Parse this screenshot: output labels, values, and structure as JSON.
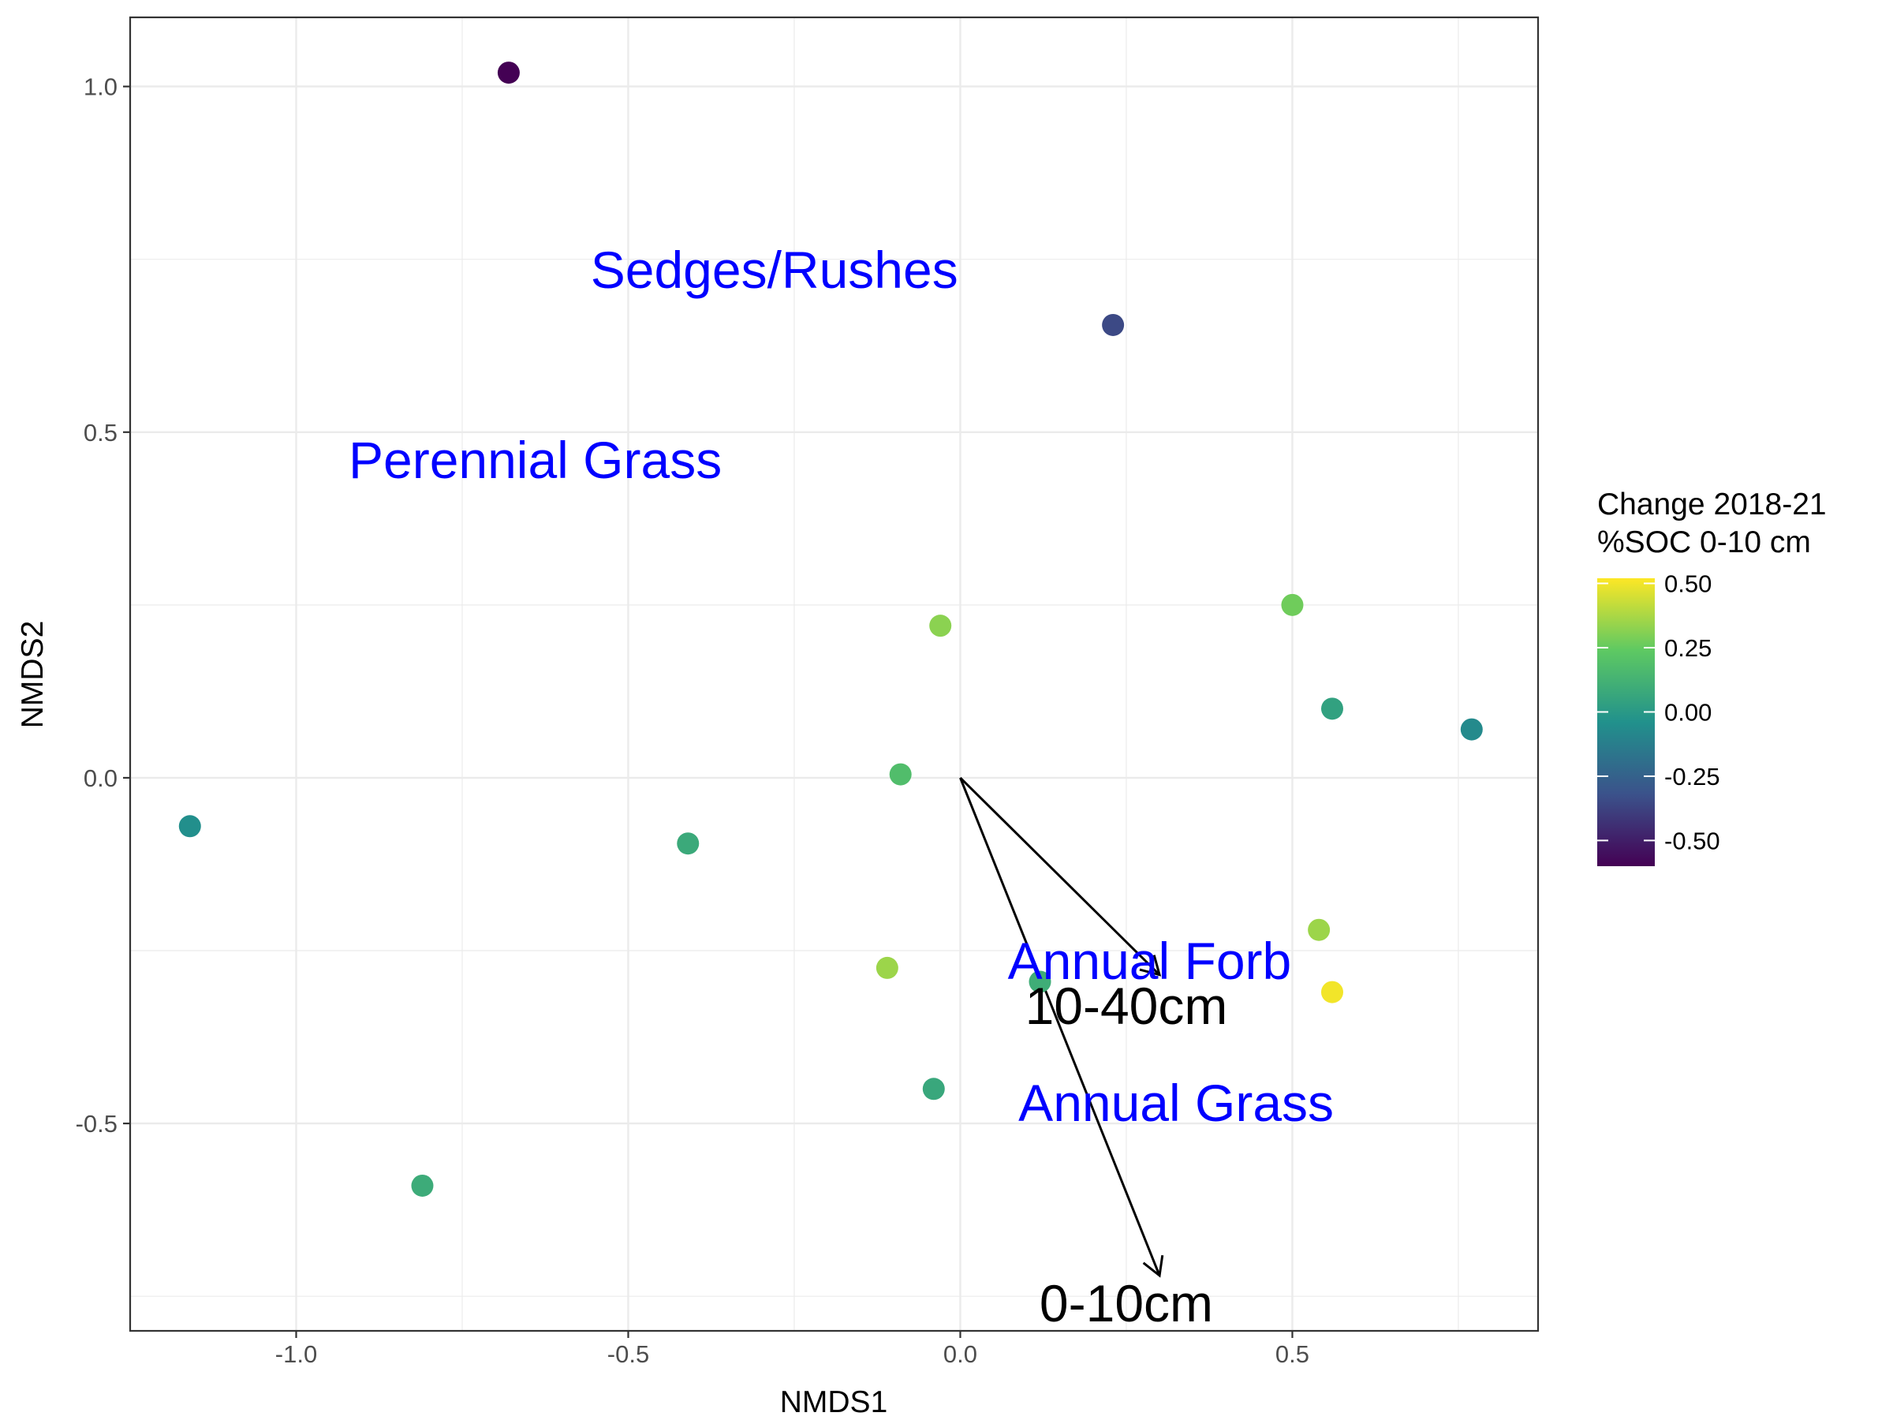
{
  "chart_data": {
    "type": "scatter",
    "xlabel": "NMDS1",
    "ylabel": "NMDS2",
    "xlim": [
      -1.25,
      0.87
    ],
    "ylim": [
      -0.8,
      1.1
    ],
    "x_ticks": [
      -1.0,
      -0.5,
      0.0,
      0.5
    ],
    "x_tick_labels": [
      "-1.0",
      "-0.5",
      "0.0",
      "0.5"
    ],
    "y_ticks": [
      -0.5,
      0.0,
      0.5,
      1.0
    ],
    "y_tick_labels": [
      "-0.5",
      "0.0",
      "0.5",
      "1.0"
    ],
    "grid": true,
    "points": [
      {
        "x": -0.68,
        "y": 1.02,
        "value": -0.6
      },
      {
        "x": 0.23,
        "y": 0.655,
        "value": -0.35
      },
      {
        "x": -0.03,
        "y": 0.22,
        "value": 0.32
      },
      {
        "x": 0.5,
        "y": 0.25,
        "value": 0.27
      },
      {
        "x": 0.56,
        "y": 0.1,
        "value": 0.04
      },
      {
        "x": 0.77,
        "y": 0.07,
        "value": -0.07
      },
      {
        "x": -0.09,
        "y": 0.005,
        "value": 0.18
      },
      {
        "x": -1.16,
        "y": -0.07,
        "value": -0.05
      },
      {
        "x": -0.41,
        "y": -0.095,
        "value": 0.08
      },
      {
        "x": 0.54,
        "y": -0.22,
        "value": 0.35
      },
      {
        "x": -0.11,
        "y": -0.275,
        "value": 0.35
      },
      {
        "x": 0.12,
        "y": -0.295,
        "value": 0.1
      },
      {
        "x": 0.56,
        "y": -0.31,
        "value": 0.5
      },
      {
        "x": -0.04,
        "y": -0.45,
        "value": 0.07
      },
      {
        "x": -0.81,
        "y": -0.59,
        "value": 0.09
      }
    ],
    "species_labels": [
      {
        "text": "Sedges/Rushes",
        "x": -0.28,
        "y": 0.735
      },
      {
        "text": "Perennial Grass",
        "x": -0.64,
        "y": 0.46
      },
      {
        "text": "Annual Forb",
        "x": 0.285,
        "y": -0.265
      },
      {
        "text": "Annual Grass",
        "x": 0.325,
        "y": -0.47
      }
    ],
    "vectors": [
      {
        "label": "10-40cm",
        "x": 0.3,
        "y": -0.285,
        "label_x": 0.25,
        "label_y": -0.33
      },
      {
        "label": "0-10cm",
        "x": 0.3,
        "y": -0.72,
        "label_x": 0.25,
        "label_y": -0.76
      }
    ],
    "legend": {
      "title_lines": [
        "Change 2018-21",
        "%SOC 0-10 cm"
      ],
      "placement": "right",
      "range": [
        -0.6,
        0.52
      ],
      "ticks": [
        0.5,
        0.25,
        0.0,
        -0.25,
        -0.5
      ],
      "tick_labels": [
        "0.50",
        "0.25",
        "0.00",
        "-0.25",
        "-0.50"
      ],
      "colormap": [
        "#440154",
        "#3b528b",
        "#21918c",
        "#5ec962",
        "#fde725"
      ]
    }
  }
}
